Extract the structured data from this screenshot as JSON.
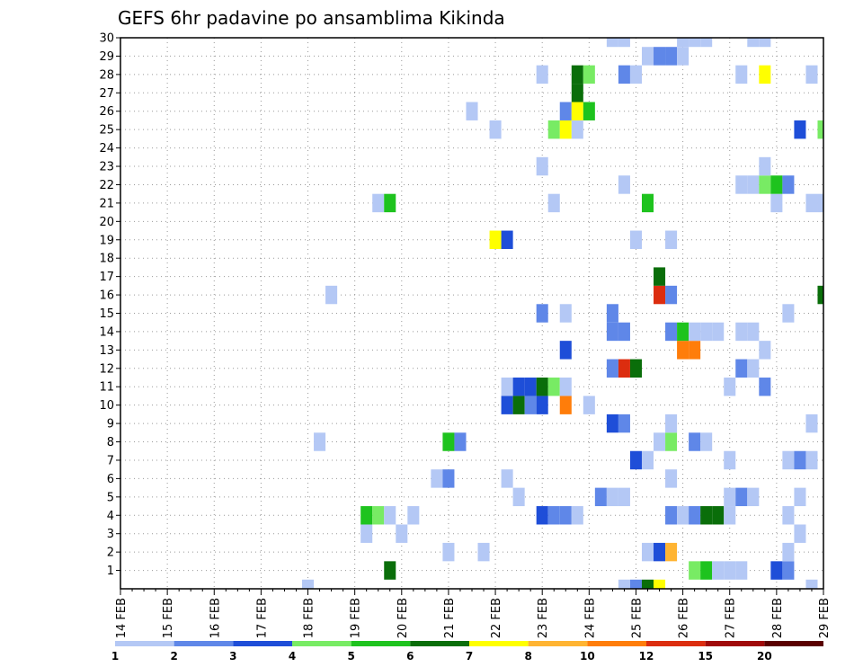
{
  "chart_data": {
    "type": "heatmap",
    "title": "GEFS 6hr padavine po ansamblima Kikinda",
    "x_unit": "6-hour steps from 14 FEB 00z",
    "x_tick_labels": [
      "14 FEB",
      "15 FEB",
      "16 FEB",
      "17 FEB",
      "18 FEB",
      "19 FEB",
      "20 FEB",
      "21 FEB",
      "22 FEB",
      "23 FEB",
      "24 FEB",
      "25 FEB",
      "26 FEB",
      "27 FEB",
      "28 FEB",
      "29 FEB"
    ],
    "y_tick_labels": [
      "1",
      "2",
      "3",
      "4",
      "5",
      "6",
      "7",
      "8",
      "9",
      "10",
      "11",
      "12",
      "13",
      "14",
      "15",
      "16",
      "17",
      "18",
      "19",
      "20",
      "21",
      "22",
      "23",
      "24",
      "25",
      "26",
      "27",
      "28",
      "29",
      "30"
    ],
    "xlim": [
      0,
      60
    ],
    "ylim": [
      0,
      30
    ],
    "grid": true,
    "legend": {
      "placement": "bottom",
      "levels": [
        "1",
        "2",
        "3",
        "4",
        "5",
        "6",
        "7",
        "8",
        "10",
        "12",
        "15",
        "20"
      ],
      "colors": [
        "#b4c8f5",
        "#5f87e8",
        "#1e4ed8",
        "#78eb64",
        "#1ec31e",
        "#0a6e0a",
        "#ffff00",
        "#ffb432",
        "#ff7d0a",
        "#dc2d0f",
        "#a00a0a",
        "#5a0000"
      ]
    },
    "cells": [
      [
        16,
        0,
        1
      ],
      [
        43,
        0,
        1
      ],
      [
        44,
        0,
        2
      ],
      [
        45,
        0,
        6
      ],
      [
        46,
        0,
        7
      ],
      [
        59,
        0,
        1
      ],
      [
        23,
        1,
        6
      ],
      [
        49,
        1,
        4
      ],
      [
        50,
        1,
        5
      ],
      [
        51,
        1,
        1
      ],
      [
        52,
        1,
        1
      ],
      [
        53,
        1,
        1
      ],
      [
        56,
        1,
        3
      ],
      [
        57,
        1,
        2
      ],
      [
        28,
        2,
        1
      ],
      [
        31,
        2,
        1
      ],
      [
        45,
        2,
        1
      ],
      [
        46,
        2,
        3
      ],
      [
        47,
        2,
        8
      ],
      [
        57,
        2,
        1
      ],
      [
        21,
        3,
        1
      ],
      [
        24,
        3,
        1
      ],
      [
        58,
        3,
        1
      ],
      [
        21,
        4,
        5
      ],
      [
        22,
        4,
        4
      ],
      [
        23,
        4,
        1
      ],
      [
        25,
        4,
        1
      ],
      [
        36,
        4,
        3
      ],
      [
        37,
        4,
        2
      ],
      [
        38,
        4,
        2
      ],
      [
        39,
        4,
        1
      ],
      [
        47,
        4,
        2
      ],
      [
        48,
        4,
        1
      ],
      [
        49,
        4,
        2
      ],
      [
        50,
        4,
        6
      ],
      [
        51,
        4,
        6
      ],
      [
        52,
        4,
        1
      ],
      [
        57,
        4,
        1
      ],
      [
        34,
        5,
        1
      ],
      [
        41,
        5,
        2
      ],
      [
        42,
        5,
        1
      ],
      [
        43,
        5,
        1
      ],
      [
        52,
        5,
        1
      ],
      [
        53,
        5,
        2
      ],
      [
        54,
        5,
        1
      ],
      [
        58,
        5,
        1
      ],
      [
        27,
        6,
        1
      ],
      [
        28,
        6,
        2
      ],
      [
        33,
        6,
        1
      ],
      [
        47,
        6,
        1
      ],
      [
        44,
        7,
        3
      ],
      [
        45,
        7,
        1
      ],
      [
        52,
        7,
        1
      ],
      [
        57,
        7,
        1
      ],
      [
        58,
        7,
        2
      ],
      [
        59,
        7,
        1
      ],
      [
        17,
        8,
        1
      ],
      [
        28,
        8,
        5
      ],
      [
        29,
        8,
        2
      ],
      [
        46,
        8,
        1
      ],
      [
        47,
        8,
        4
      ],
      [
        49,
        8,
        2
      ],
      [
        50,
        8,
        1
      ],
      [
        42,
        9,
        3
      ],
      [
        43,
        9,
        2
      ],
      [
        47,
        9,
        1
      ],
      [
        59,
        9,
        1
      ],
      [
        33,
        10,
        3
      ],
      [
        34,
        10,
        6
      ],
      [
        35,
        10,
        2
      ],
      [
        36,
        10,
        3
      ],
      [
        38,
        10,
        9
      ],
      [
        40,
        10,
        1
      ],
      [
        33,
        11,
        1
      ],
      [
        34,
        11,
        3
      ],
      [
        35,
        11,
        3
      ],
      [
        36,
        11,
        6
      ],
      [
        37,
        11,
        4
      ],
      [
        38,
        11,
        1
      ],
      [
        52,
        11,
        1
      ],
      [
        55,
        11,
        2
      ],
      [
        42,
        12,
        2
      ],
      [
        43,
        12,
        10
      ],
      [
        44,
        12,
        6
      ],
      [
        53,
        12,
        2
      ],
      [
        54,
        12,
        1
      ],
      [
        38,
        13,
        3
      ],
      [
        48,
        13,
        9
      ],
      [
        49,
        13,
        9
      ],
      [
        55,
        13,
        1
      ],
      [
        42,
        14,
        2
      ],
      [
        43,
        14,
        2
      ],
      [
        47,
        14,
        2
      ],
      [
        48,
        14,
        5
      ],
      [
        49,
        14,
        1
      ],
      [
        50,
        14,
        1
      ],
      [
        51,
        14,
        1
      ],
      [
        53,
        14,
        1
      ],
      [
        54,
        14,
        1
      ],
      [
        36,
        15,
        2
      ],
      [
        38,
        15,
        1
      ],
      [
        42,
        15,
        2
      ],
      [
        57,
        15,
        1
      ],
      [
        18,
        16,
        1
      ],
      [
        46,
        16,
        10
      ],
      [
        47,
        16,
        2
      ],
      [
        60,
        16,
        6
      ],
      [
        46,
        17,
        6
      ],
      [
        32,
        19,
        7
      ],
      [
        33,
        19,
        3
      ],
      [
        44,
        19,
        1
      ],
      [
        47,
        19,
        1
      ],
      [
        22,
        21,
        1
      ],
      [
        23,
        21,
        5
      ],
      [
        37,
        21,
        1
      ],
      [
        45,
        21,
        5
      ],
      [
        56,
        21,
        1
      ],
      [
        59,
        21,
        1
      ],
      [
        60,
        21,
        1
      ],
      [
        43,
        22,
        1
      ],
      [
        53,
        22,
        1
      ],
      [
        54,
        22,
        1
      ],
      [
        55,
        22,
        4
      ],
      [
        56,
        22,
        5
      ],
      [
        57,
        22,
        2
      ],
      [
        36,
        23,
        1
      ],
      [
        55,
        23,
        1
      ],
      [
        32,
        25,
        1
      ],
      [
        37,
        25,
        4
      ],
      [
        38,
        25,
        7
      ],
      [
        39,
        25,
        1
      ],
      [
        58,
        25,
        3
      ],
      [
        60,
        25,
        4
      ],
      [
        30,
        26,
        1
      ],
      [
        38,
        26,
        2
      ],
      [
        39,
        26,
        7
      ],
      [
        40,
        26,
        5
      ],
      [
        39,
        27,
        6
      ],
      [
        36,
        28,
        1
      ],
      [
        39,
        28,
        6
      ],
      [
        40,
        28,
        4
      ],
      [
        43,
        28,
        2
      ],
      [
        44,
        28,
        1
      ],
      [
        53,
        28,
        1
      ],
      [
        55,
        28,
        7
      ],
      [
        59,
        28,
        1
      ],
      [
        45,
        29,
        1
      ],
      [
        46,
        29,
        2
      ],
      [
        47,
        29,
        2
      ],
      [
        48,
        29,
        1
      ],
      [
        42,
        30,
        1
      ],
      [
        43,
        30,
        1
      ],
      [
        48,
        30,
        1
      ],
      [
        49,
        30,
        1
      ],
      [
        50,
        30,
        1
      ],
      [
        54,
        30,
        1
      ],
      [
        55,
        30,
        1
      ]
    ]
  }
}
